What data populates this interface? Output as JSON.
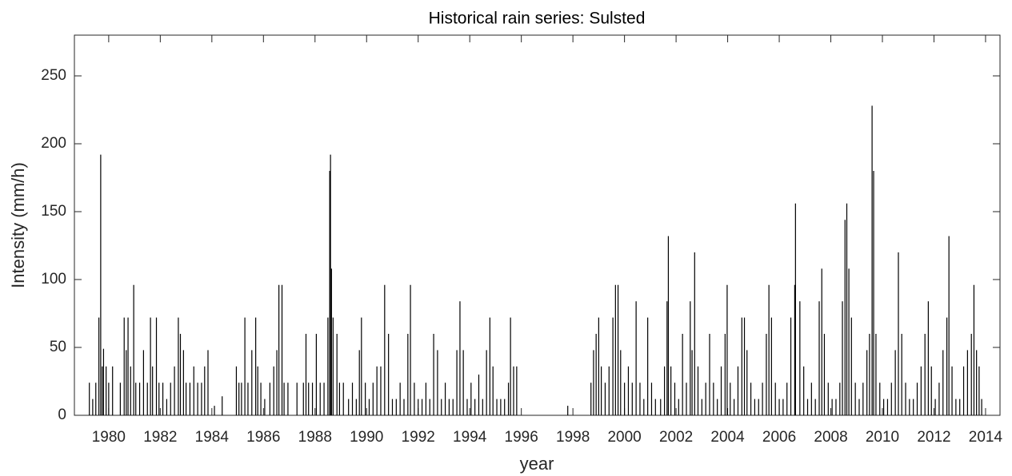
{
  "chart_data": {
    "type": "stem",
    "title": "Historical rain series: Sulsted",
    "x_label": "year",
    "y_label": "Intensity (mm/h)",
    "color": "#000000",
    "xlim": [
      1978.67,
      2014.56
    ],
    "ylim": [
      0,
      280
    ],
    "xticks": [
      1980,
      1982,
      1984,
      1986,
      1988,
      1990,
      1992,
      1994,
      1996,
      1998,
      2000,
      2002,
      2004,
      2006,
      2008,
      2010,
      2012,
      2014
    ],
    "yticks": [
      0,
      50,
      100,
      150,
      200,
      250
    ],
    "grid": false,
    "x": [
      1979.25,
      1979.38,
      1979.5,
      1979.62,
      1979.69,
      1979.75,
      1979.8,
      1979.9,
      1980.0,
      1980.15,
      1980.45,
      1980.6,
      1980.68,
      1980.75,
      1980.85,
      1980.97,
      1981.05,
      1981.2,
      1981.35,
      1981.5,
      1981.62,
      1981.7,
      1981.85,
      1981.95,
      1982.1,
      1982.25,
      1982.4,
      1982.55,
      1982.7,
      1982.78,
      1982.9,
      1983.0,
      1983.15,
      1983.3,
      1983.45,
      1983.6,
      1983.72,
      1983.85,
      1984.1,
      1984.4,
      1984.95,
      1985.05,
      1985.15,
      1985.28,
      1985.4,
      1985.55,
      1985.7,
      1985.78,
      1985.9,
      1986.05,
      1986.25,
      1986.4,
      1986.52,
      1986.6,
      1986.72,
      1986.8,
      1986.95,
      1987.3,
      1987.55,
      1987.65,
      1987.75,
      1987.9,
      1988.05,
      1988.2,
      1988.35,
      1988.5,
      1988.57,
      1988.6,
      1988.64,
      1988.7,
      1988.85,
      1988.95,
      1989.1,
      1989.3,
      1989.45,
      1989.6,
      1989.72,
      1989.8,
      1989.95,
      1990.1,
      1990.25,
      1990.4,
      1990.55,
      1990.7,
      1990.85,
      1991.0,
      1991.15,
      1991.3,
      1991.45,
      1991.6,
      1991.7,
      1991.85,
      1992.0,
      1992.15,
      1992.3,
      1992.45,
      1992.6,
      1992.75,
      1992.9,
      1993.05,
      1993.2,
      1993.35,
      1993.5,
      1993.62,
      1993.75,
      1993.9,
      1994.05,
      1994.2,
      1994.35,
      1994.5,
      1994.65,
      1994.78,
      1994.9,
      1995.05,
      1995.2,
      1995.35,
      1995.5,
      1995.58,
      1995.7,
      1995.82,
      1997.8,
      1998.7,
      1998.8,
      1998.9,
      1999.0,
      1999.1,
      1999.25,
      1999.4,
      1999.55,
      1999.65,
      1999.75,
      1999.85,
      2000.0,
      2000.15,
      2000.3,
      2000.45,
      2000.6,
      2000.75,
      2000.9,
      2001.05,
      2001.2,
      2001.4,
      2001.55,
      2001.65,
      2001.7,
      2001.8,
      2001.95,
      2002.1,
      2002.25,
      2002.4,
      2002.55,
      2002.62,
      2002.72,
      2002.85,
      2003.0,
      2003.15,
      2003.3,
      2003.45,
      2003.6,
      2003.75,
      2003.9,
      2003.98,
      2004.1,
      2004.25,
      2004.4,
      2004.55,
      2004.65,
      2004.75,
      2004.9,
      2005.05,
      2005.2,
      2005.35,
      2005.5,
      2005.6,
      2005.7,
      2005.85,
      2006.0,
      2006.15,
      2006.3,
      2006.45,
      2006.6,
      2006.63,
      2006.8,
      2006.95,
      2007.1,
      2007.25,
      2007.4,
      2007.55,
      2007.65,
      2007.75,
      2007.9,
      2008.05,
      2008.2,
      2008.35,
      2008.45,
      2008.55,
      2008.62,
      2008.7,
      2008.8,
      2008.95,
      2009.1,
      2009.25,
      2009.4,
      2009.5,
      2009.6,
      2009.66,
      2009.75,
      2009.9,
      2010.05,
      2010.2,
      2010.35,
      2010.5,
      2010.62,
      2010.75,
      2010.9,
      2011.05,
      2011.2,
      2011.35,
      2011.5,
      2011.65,
      2011.78,
      2011.9,
      2012.05,
      2012.2,
      2012.35,
      2012.5,
      2012.58,
      2012.7,
      2012.85,
      2013.0,
      2013.15,
      2013.3,
      2013.45,
      2013.55,
      2013.65,
      2013.75,
      2013.85
    ],
    "values": [
      24,
      12,
      24,
      72,
      192,
      36,
      49,
      36,
      24,
      36,
      24,
      72,
      48,
      72,
      36,
      96,
      24,
      24,
      48,
      24,
      72,
      36,
      72,
      24,
      24,
      12,
      24,
      36,
      72,
      60,
      48,
      24,
      24,
      36,
      24,
      24,
      36,
      48,
      7,
      14,
      36,
      24,
      24,
      72,
      24,
      48,
      72,
      36,
      24,
      12,
      24,
      36,
      48,
      96,
      96,
      24,
      24,
      24,
      24,
      60,
      24,
      24,
      60,
      24,
      24,
      72,
      180,
      192,
      108,
      72,
      60,
      24,
      24,
      12,
      24,
      12,
      48,
      72,
      24,
      12,
      24,
      36,
      36,
      96,
      60,
      12,
      12,
      24,
      12,
      60,
      96,
      24,
      12,
      12,
      24,
      12,
      60,
      48,
      12,
      24,
      12,
      12,
      48,
      84,
      48,
      12,
      24,
      12,
      30,
      12,
      48,
      72,
      36,
      12,
      12,
      12,
      24,
      72,
      36,
      36,
      7,
      24,
      48,
      60,
      72,
      36,
      24,
      36,
      72,
      96,
      96,
      48,
      24,
      36,
      24,
      84,
      24,
      12,
      72,
      24,
      12,
      12,
      36,
      84,
      132,
      36,
      24,
      12,
      60,
      24,
      84,
      48,
      120,
      36,
      12,
      24,
      60,
      24,
      12,
      36,
      60,
      96,
      24,
      12,
      36,
      72,
      72,
      48,
      24,
      12,
      12,
      24,
      60,
      96,
      72,
      24,
      12,
      12,
      24,
      72,
      96,
      156,
      84,
      36,
      12,
      24,
      12,
      84,
      108,
      60,
      24,
      12,
      12,
      24,
      84,
      144,
      156,
      108,
      72,
      24,
      12,
      24,
      48,
      60,
      228,
      180,
      60,
      24,
      12,
      12,
      24,
      48,
      120,
      60,
      24,
      12,
      12,
      24,
      36,
      60,
      84,
      36,
      12,
      24,
      48,
      72,
      132,
      36,
      12,
      12,
      36,
      48,
      60,
      96,
      48,
      36,
      12
    ]
  }
}
